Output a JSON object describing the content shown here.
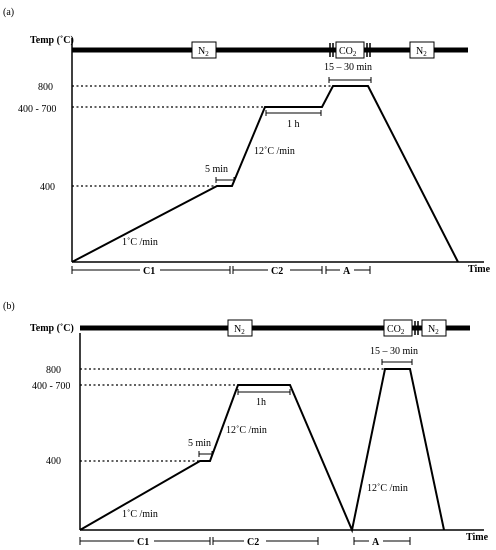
{
  "panel_a": {
    "label": "(a)",
    "y_axis_label": "Temp (˚C)",
    "x_axis_label": "Time",
    "y_ticks": [
      "800",
      "400 - 700",
      "400"
    ],
    "gas_bar": [
      {
        "gas": "N",
        "subscript": "2"
      },
      {
        "gas": "CO",
        "subscript": "2"
      },
      {
        "gas": "N",
        "subscript": "2"
      }
    ],
    "annotations": {
      "hold_800": "15 – 30 min",
      "hold_mid": "1 h",
      "hold_400": "5 min",
      "rate_ramp2": "12˚C /min",
      "rate_ramp1": "1˚C /min"
    },
    "stages": [
      "C1",
      "C2",
      "A"
    ]
  },
  "panel_b": {
    "label": "(b)",
    "y_axis_label": "Temp (˚C)",
    "x_axis_label": "Time",
    "y_ticks": [
      "800",
      "400 - 700",
      "400"
    ],
    "gas_bar": [
      {
        "gas": "N",
        "subscript": "2"
      },
      {
        "gas": "CO",
        "subscript": "2"
      },
      {
        "gas": "N",
        "subscript": "2"
      }
    ],
    "annotations": {
      "hold_800": "15 – 30 min",
      "hold_mid": "1h",
      "hold_400": "5 min",
      "rate_ramp2": "12˚C /min",
      "rate_ramp1": "1˚C /min",
      "rate_ramp3": "12˚C /min"
    },
    "stages": [
      "C1",
      "C2",
      "A"
    ]
  }
}
